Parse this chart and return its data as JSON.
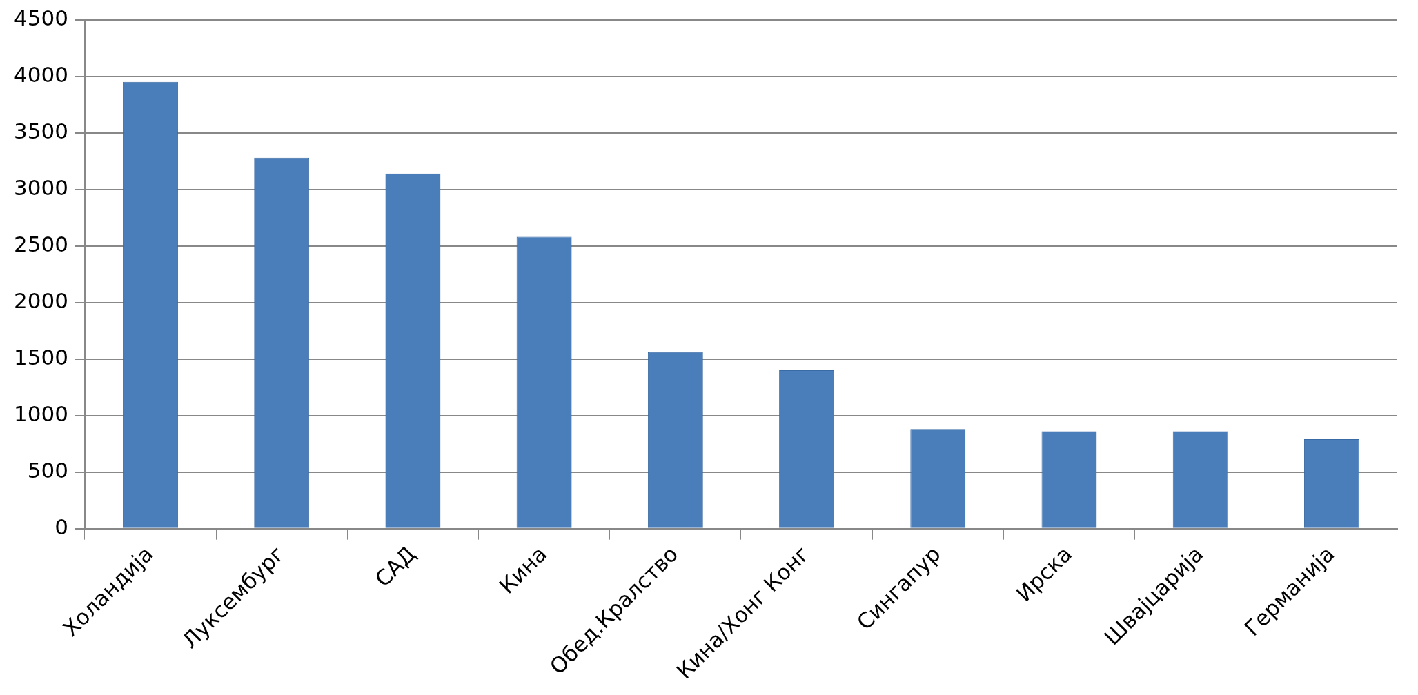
{
  "chart_data": {
    "type": "bar",
    "categories": [
      "Холандија",
      "Луксембург",
      "САД",
      "Кина",
      "Обед.Кралство",
      "Кина/Хонг Конг",
      "Сингапур",
      "Ирска",
      "Швајцарија",
      "Германија"
    ],
    "values": [
      3950,
      3280,
      3140,
      2580,
      1560,
      1400,
      880,
      860,
      860,
      790
    ],
    "color": "#4a7ebb",
    "ylim": [
      0,
      4500
    ],
    "yticks": [
      0,
      500,
      1000,
      1500,
      2000,
      2500,
      3000,
      3500,
      4000,
      4500
    ],
    "grid": "y",
    "legend": false
  }
}
